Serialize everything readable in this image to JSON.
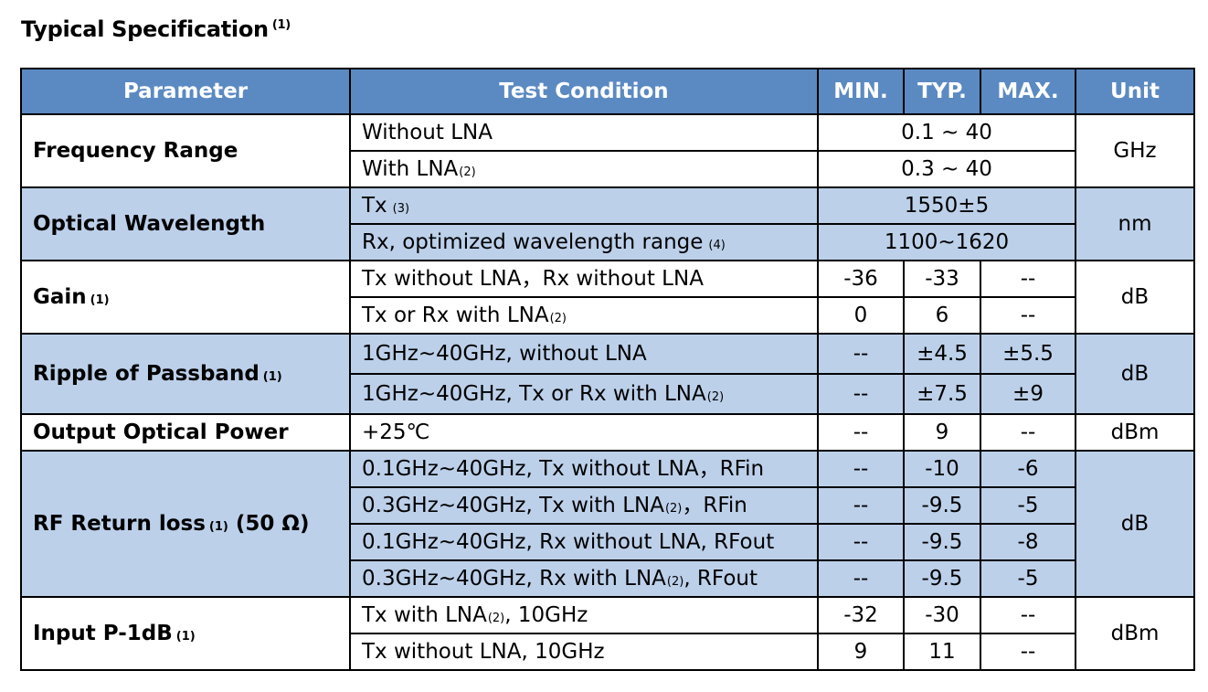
{
  "title": "Typical Specification",
  "title_note": "(1)",
  "headers": {
    "parameter": "Parameter",
    "condition": "Test Condition",
    "min": "MIN.",
    "typ": "TYP.",
    "max": "MAX.",
    "unit": "Unit"
  },
  "rows": {
    "freq": {
      "param": "Frequency Range",
      "unit": "GHz",
      "r1": {
        "cond": "Without LNA",
        "value": "0.1 ~ 40"
      },
      "r2": {
        "cond": "With LNA",
        "note": "(2)",
        "value": "0.3 ~ 40"
      }
    },
    "wavelength": {
      "param": "Optical Wavelength",
      "unit": "nm",
      "r1": {
        "cond": "Tx",
        "note": "(3)",
        "value": "1550±5"
      },
      "r2": {
        "cond": "Rx, optimized wavelength range",
        "note": "(4)",
        "value": "1100~1620"
      }
    },
    "gain": {
      "param": "Gain",
      "note": "(1)",
      "unit": "dB",
      "r1": {
        "cond": "Tx without LNA，Rx without LNA",
        "min": "-36",
        "typ": "-33",
        "max": "--"
      },
      "r2": {
        "cond": "Tx or Rx with LNA",
        "note": "(2)",
        "min": "0",
        "typ": "6",
        "max": "--"
      }
    },
    "ripple": {
      "param": "Ripple of Passband",
      "note": "(1)",
      "unit": "dB",
      "r1": {
        "cond": "1GHz~40GHz, without LNA",
        "min": "--",
        "typ": "±4.5",
        "max": "±5.5"
      },
      "r2": {
        "cond": "1GHz~40GHz, Tx or Rx with LNA",
        "note": "(2)",
        "min": "--",
        "typ": "±7.5",
        "max": "±9"
      }
    },
    "power": {
      "param": "Output Optical Power",
      "unit": "dBm",
      "r1": {
        "cond": "+25℃",
        "min": "--",
        "typ": "9",
        "max": "--"
      }
    },
    "rfloss": {
      "param": "RF Return loss",
      "note": "(1)",
      "param_suffix": "(50 Ω)",
      "unit": "dB",
      "r1": {
        "cond": "0.1GHz~40GHz, Tx without LNA，RFin",
        "min": "--",
        "typ": "-10",
        "max": "-6"
      },
      "r2": {
        "cond_a": "0.3GHz~40GHz, Tx with LNA",
        "note": "(2)",
        "cond_b": "，RFin",
        "min": "--",
        "typ": "-9.5",
        "max": "-5"
      },
      "r3": {
        "cond": "0.1GHz~40GHz, Rx without LNA, RFout",
        "min": "--",
        "typ": "-9.5",
        "max": "-8"
      },
      "r4": {
        "cond_a": "0.3GHz~40GHz, Rx with LNA",
        "note": "(2)",
        "cond_b": ", RFout",
        "min": "--",
        "typ": "-9.5",
        "max": "-5"
      }
    },
    "p1db": {
      "param": "Input P-1dB",
      "note": "(1)",
      "unit": "dBm",
      "r1": {
        "cond_a": "Tx with LNA",
        "note": "(2)",
        "cond_b": ", 10GHz",
        "min": "-32",
        "typ": "-30",
        "max": "--"
      },
      "r2": {
        "cond": "Tx without LNA, 10GHz",
        "min": "9",
        "typ": "11",
        "max": "--"
      }
    }
  }
}
